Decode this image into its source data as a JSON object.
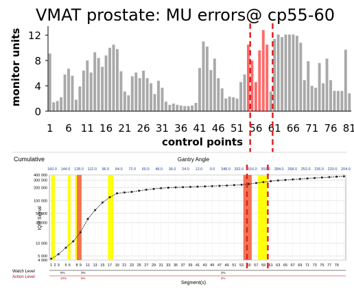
{
  "chart_data": [
    {
      "type": "bar",
      "title": "VMAT prostate: MU errors@ cp55-60",
      "xlabel": "control points",
      "ylabel": "monitor units",
      "ylim": [
        0,
        13
      ],
      "yticks": [
        0,
        4,
        8,
        12
      ],
      "xticks": [
        1,
        6,
        11,
        16,
        21,
        26,
        31,
        36,
        41,
        46,
        51,
        56,
        61,
        66,
        71,
        76,
        81
      ],
      "x": [
        1,
        2,
        3,
        4,
        5,
        6,
        7,
        8,
        9,
        10,
        11,
        12,
        13,
        14,
        15,
        16,
        17,
        18,
        19,
        20,
        21,
        22,
        23,
        24,
        25,
        26,
        27,
        28,
        29,
        30,
        31,
        32,
        33,
        34,
        35,
        36,
        37,
        38,
        39,
        40,
        41,
        42,
        43,
        44,
        45,
        46,
        47,
        48,
        49,
        50,
        51,
        52,
        53,
        54,
        55,
        56,
        57,
        58,
        59,
        60,
        61,
        62,
        63,
        64,
        65,
        66,
        67,
        68,
        69,
        70,
        71,
        72,
        73,
        74,
        75,
        76,
        77,
        78,
        79,
        80,
        81
      ],
      "values": [
        9.1,
        1.4,
        1.6,
        2.2,
        5.8,
        6.7,
        5.6,
        1.8,
        3.9,
        6.4,
        8.0,
        6.1,
        9.3,
        8.4,
        7.0,
        8.8,
        10.0,
        10.5,
        9.8,
        6.3,
        3.1,
        2.5,
        5.5,
        6.1,
        5.2,
        6.4,
        5.2,
        4.4,
        2.7,
        4.8,
        3.7,
        1.5,
        1.0,
        1.2,
        1.0,
        0.9,
        0.8,
        0.8,
        0.9,
        1.3,
        6.8,
        11.0,
        10.2,
        6.5,
        8.3,
        5.2,
        3.6,
        2.0,
        2.3,
        2.2,
        2.0,
        4.6,
        5.8,
        10.5,
        8.0,
        4.6,
        9.6,
        12.8,
        10.5,
        3.1,
        11.4,
        12.1,
        11.7,
        12.1,
        12.1,
        12.1,
        11.9,
        10.8,
        4.9,
        7.9,
        4.0,
        3.7,
        7.6,
        4.4,
        8.3,
        4.9,
        3.2,
        3.2,
        3.2,
        9.7,
        2.8
      ],
      "series": [
        {
          "values": [
            9.1,
            1.4,
            1.6,
            2.2,
            5.8,
            6.7,
            5.6,
            1.8,
            3.9,
            6.4,
            8.0,
            6.1,
            9.3,
            8.4,
            7.0,
            8.8,
            10.0,
            10.5,
            9.8,
            6.3,
            3.1,
            2.5,
            5.5,
            6.1,
            5.2,
            6.4,
            5.2,
            4.4,
            2.7,
            4.8,
            3.7,
            1.5,
            1.0,
            1.2,
            1.0,
            0.9,
            0.8,
            0.8,
            0.9,
            1.3,
            6.8,
            11.0,
            10.2,
            6.5,
            8.3,
            5.2,
            3.6,
            2.0,
            2.3,
            2.2,
            2.0,
            4.6,
            5.8,
            10.5,
            8.0,
            4.6,
            9.6,
            12.8,
            10.5,
            3.1,
            11.4,
            12.1,
            11.7,
            12.1,
            12.1,
            12.1,
            11.9,
            10.8,
            4.9,
            7.9,
            4.0,
            3.7,
            7.6,
            4.4,
            8.3,
            4.9,
            3.2,
            3.2,
            3.2,
            9.7,
            2.8
          ],
          "color": "#a9a9a9"
        },
        {
          "x": [
            54,
            55,
            56,
            57,
            58,
            59
          ],
          "values": [
            10.5,
            8.0,
            4.6,
            9.6,
            12.8,
            10.5
          ],
          "color": "#ff6a6a"
        }
      ],
      "markers": [
        {
          "x": 54.5,
          "color": "#e02020",
          "style": "dashed"
        },
        {
          "x": 60.5,
          "color": "#e02020",
          "style": "dashed"
        }
      ],
      "grid": false
    },
    {
      "type": "line",
      "title": "Cumulative",
      "top_axis_label": "Gantry Angle",
      "top_ticks": [
        "160.0",
        "144.0",
        "128.0",
        "112.0",
        "96.0",
        "84.0",
        "72.0",
        "60.0",
        "48.0",
        "36.0",
        "24.0",
        "12.0",
        "0.0",
        "348.0",
        "332.0",
        "316.0",
        "300.0",
        "284.0",
        "268.0",
        "252.0",
        "236.0",
        "220.0",
        "204.0"
      ],
      "ylabel": "IQM Signal",
      "yscale": "log",
      "ylim": [
        4000,
        400000
      ],
      "yticks": [
        4000,
        5000,
        10000,
        30000,
        50000,
        100000,
        200000,
        300000,
        400000
      ],
      "ytick_labels": [
        "4 000",
        "5 000",
        "10 000",
        "30 000",
        "50 000",
        "100 000",
        "200 000",
        "300 000",
        "400 000"
      ],
      "xlabel": "Segment(s)",
      "xticks": [
        1,
        2,
        3,
        5,
        6,
        8,
        9,
        11,
        13,
        15,
        17,
        19,
        21,
        23,
        25,
        27,
        29,
        31,
        33,
        35,
        37,
        39,
        41,
        43,
        45,
        47,
        49,
        51,
        53,
        55,
        57,
        59,
        61,
        63,
        65,
        67,
        69,
        71,
        73,
        75,
        77,
        79
      ],
      "x": [
        1,
        3,
        5,
        7,
        9,
        11,
        13,
        15,
        17,
        19,
        21,
        23,
        25,
        27,
        29,
        31,
        33,
        35,
        37,
        39,
        41,
        43,
        45,
        47,
        49,
        51,
        53,
        55,
        57,
        59,
        61,
        63,
        65,
        67,
        69,
        71,
        73,
        75,
        77,
        79,
        81
      ],
      "values": [
        4300,
        5500,
        7800,
        11000,
        18000,
        37000,
        60000,
        90000,
        120000,
        148000,
        155000,
        160000,
        170000,
        180000,
        188000,
        196000,
        201000,
        204000,
        207000,
        210000,
        213000,
        216000,
        219000,
        222000,
        226000,
        231000,
        236000,
        246000,
        258000,
        272000,
        286000,
        297000,
        306000,
        314000,
        322000,
        331000,
        340000,
        348000,
        356000,
        364000,
        372000
      ],
      "highlights": [
        {
          "from": 1,
          "to": 2,
          "color": "#ffff00"
        },
        {
          "from": 5.5,
          "to": 6.3,
          "color": "#ffff00"
        },
        {
          "from": 7.5,
          "to": 8,
          "color": "#ffff00"
        },
        {
          "from": 8,
          "to": 9.3,
          "color": "#f26b4a"
        },
        {
          "from": 16.5,
          "to": 18,
          "color": "#ffff00"
        },
        {
          "from": 53.5,
          "to": 55.8,
          "color": "#f26b4a"
        },
        {
          "from": 57.5,
          "to": 60,
          "color": "#ffff00"
        }
      ],
      "markers": [
        {
          "x": 54.5,
          "color": "#e02020",
          "style": "dashed"
        },
        {
          "x": 60.2,
          "color": "#e02020",
          "style": "dashed"
        }
      ],
      "watch_level": {
        "label": "Watch Level",
        "marks": [
          "5%",
          "3%",
          "2%"
        ]
      },
      "action_level": {
        "label": "Action Level",
        "marks": [
          "10%",
          "5%",
          "3%"
        ]
      },
      "grid": true
    }
  ]
}
